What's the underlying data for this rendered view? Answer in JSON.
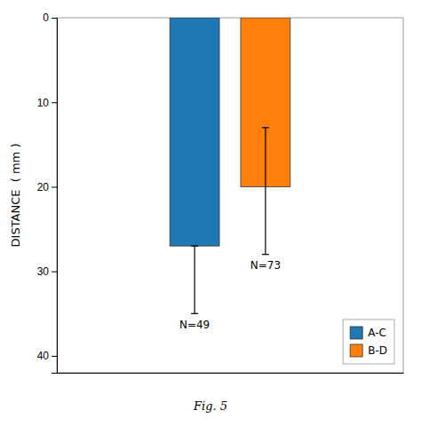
{
  "chart_data": {
    "type": "bar",
    "caption": "Fig. 5",
    "ylabel": "DISTANCE  ( mm )",
    "categories": [
      null
    ],
    "series": [
      {
        "name": "A-C",
        "values": [
          27.0
        ],
        "error_minus": [
          0
        ],
        "error_plus": [
          8.0
        ],
        "annotation": "N=49"
      },
      {
        "name": "B-D",
        "values": [
          20.0
        ],
        "error_minus": [
          7.0
        ],
        "error_plus": [
          8.0
        ],
        "annotation": "N=73"
      }
    ],
    "ylim": [
      42,
      0
    ],
    "yticks": [
      0,
      10,
      20,
      30,
      40
    ],
    "legend": "lower right",
    "tick_labels": "y"
  }
}
